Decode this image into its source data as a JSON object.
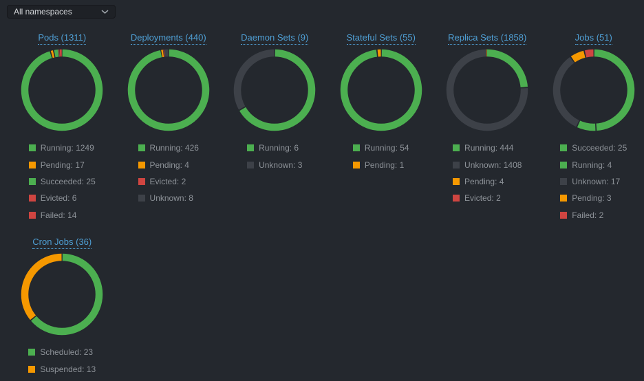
{
  "header": {
    "namespace_filter": {
      "value": "All namespaces"
    }
  },
  "colors": {
    "background": "#24282e",
    "legend_text": "#8d9298",
    "link_blue": "#4f9fd4",
    "running_green": "#4caf50",
    "pending_orange": "#f59800",
    "error_red": "#cf4541",
    "unknown_gray": "#3d4148"
  },
  "chart_data": [
    {
      "type": "donut",
      "title": "Pods (1311)",
      "total": 1311,
      "segments": [
        {
          "label": "Running",
          "value": 1249,
          "color": "#4caf50"
        },
        {
          "label": "Pending",
          "value": 17,
          "color": "#f59800"
        },
        {
          "label": "Succeeded",
          "value": 25,
          "color": "#4caf50"
        },
        {
          "label": "Evicted",
          "value": 6,
          "color": "#cf4541"
        },
        {
          "label": "Failed",
          "value": 14,
          "color": "#cf4541"
        }
      ]
    },
    {
      "type": "donut",
      "title": "Deployments (440)",
      "total": 440,
      "segments": [
        {
          "label": "Running",
          "value": 426,
          "color": "#4caf50"
        },
        {
          "label": "Pending",
          "value": 4,
          "color": "#f59800"
        },
        {
          "label": "Evicted",
          "value": 2,
          "color": "#cf4541"
        },
        {
          "label": "Unknown",
          "value": 8,
          "color": "#3d4148"
        }
      ]
    },
    {
      "type": "donut",
      "title": "Daemon Sets (9)",
      "total": 9,
      "segments": [
        {
          "label": "Running",
          "value": 6,
          "color": "#4caf50"
        },
        {
          "label": "Unknown",
          "value": 3,
          "color": "#3d4148"
        }
      ]
    },
    {
      "type": "donut",
      "title": "Stateful Sets (55)",
      "total": 55,
      "segments": [
        {
          "label": "Running",
          "value": 54,
          "color": "#4caf50"
        },
        {
          "label": "Pending",
          "value": 1,
          "color": "#f59800"
        }
      ]
    },
    {
      "type": "donut",
      "title": "Replica Sets (1858)",
      "total": 1858,
      "segments": [
        {
          "label": "Running",
          "value": 444,
          "color": "#4caf50"
        },
        {
          "label": "Unknown",
          "value": 1408,
          "color": "#3d4148"
        },
        {
          "label": "Pending",
          "value": 4,
          "color": "#f59800"
        },
        {
          "label": "Evicted",
          "value": 2,
          "color": "#cf4541"
        }
      ]
    },
    {
      "type": "donut",
      "title": "Jobs (51)",
      "total": 51,
      "segments": [
        {
          "label": "Succeeded",
          "value": 25,
          "color": "#4caf50"
        },
        {
          "label": "Running",
          "value": 4,
          "color": "#4caf50"
        },
        {
          "label": "Unknown",
          "value": 17,
          "color": "#3d4148"
        },
        {
          "label": "Pending",
          "value": 3,
          "color": "#f59800"
        },
        {
          "label": "Failed",
          "value": 2,
          "color": "#cf4541"
        }
      ]
    },
    {
      "type": "donut",
      "title": "Cron Jobs (36)",
      "total": 36,
      "segments": [
        {
          "label": "Scheduled",
          "value": 23,
          "color": "#4caf50"
        },
        {
          "label": "Suspended",
          "value": 13,
          "color": "#f59800"
        }
      ]
    }
  ]
}
